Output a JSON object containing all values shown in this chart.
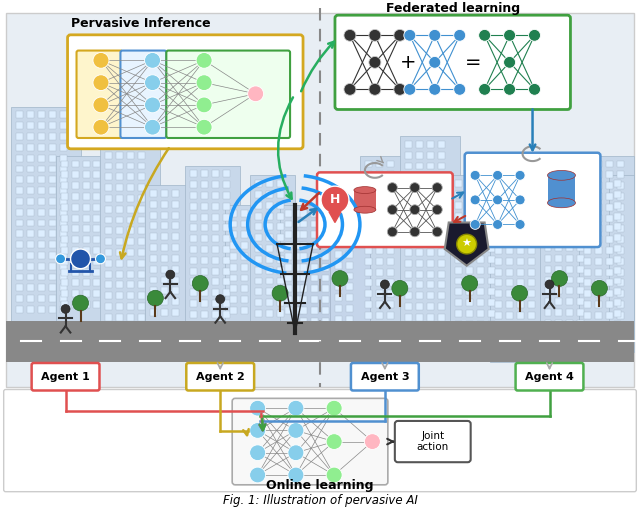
{
  "title": "Fig. 1: Illustration of pervasive AI",
  "bg_color": "#f5f5f5",
  "city_bg": "#e8eef4",
  "labels": {
    "pervasive_inference": "Pervasive Inference",
    "federated_learning": "Federated learning",
    "online_learning": "Online learning",
    "joint_action": "Joint\naction",
    "agent1": "Agent 1",
    "agent2": "Agent 2",
    "agent3": "Agent 3",
    "agent4": "Agent 4"
  },
  "agent_box_colors": [
    "#e05050",
    "#c8a820",
    "#5090d0",
    "#50b050"
  ],
  "pervasive_box_color": "#d4a820",
  "federated_box_color": "#40a040",
  "hospital_box_color": "#e05050",
  "server_box_color": "#5090d0",
  "dashed_color": "#888888",
  "nn_ol_input_color": "#87ceeb",
  "nn_ol_hidden_color": "#90ee90",
  "nn_ol_output_color": "#ffb6c1",
  "nn_pi_yellow_color": "#f0c040",
  "nn_pi_blue_color": "#87ceeb",
  "nn_pi_green_color": "#90ee90",
  "nn_pi_pink_color": "#ffb6c1",
  "nn_fed_black": "#333333",
  "nn_fed_blue": "#4090d0",
  "nn_fed_green": "#208050",
  "arrow_green": "#27ae60",
  "arrow_blue": "#2980b9",
  "arrow_red": "#c0392b",
  "arrow_gray": "#999999",
  "arrow_yellow": "#c8a820",
  "road_color": "#888888"
}
